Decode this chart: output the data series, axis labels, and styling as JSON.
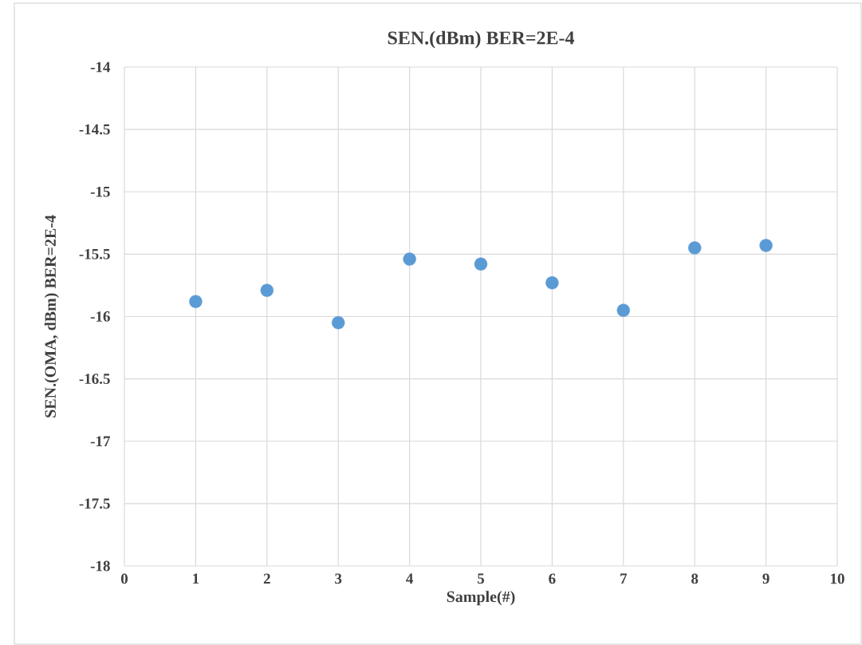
{
  "chart_data": {
    "type": "scatter",
    "title": "SEN.(dBm)  BER=2E-4",
    "xlabel": "Sample(#)",
    "ylabel": "SEN.(OMA, dBm) BER=2E-4",
    "x": [
      1,
      2,
      3,
      4,
      5,
      6,
      7,
      8,
      9
    ],
    "series": [
      {
        "color": "#5b9bd5",
        "values": [
          -15.88,
          -15.79,
          -16.05,
          -15.54,
          -15.58,
          -15.73,
          -15.95,
          -15.45,
          -15.43
        ]
      }
    ],
    "xlim": [
      0,
      10
    ],
    "ylim": [
      -18,
      -14
    ],
    "xticks": [
      0,
      1,
      2,
      3,
      4,
      5,
      6,
      7,
      8,
      9,
      10
    ],
    "yticks": [
      -18,
      -17.5,
      -17,
      -16.5,
      -16,
      -15.5,
      -15,
      -14.5,
      -14
    ],
    "grid": true,
    "marker": "circle"
  }
}
